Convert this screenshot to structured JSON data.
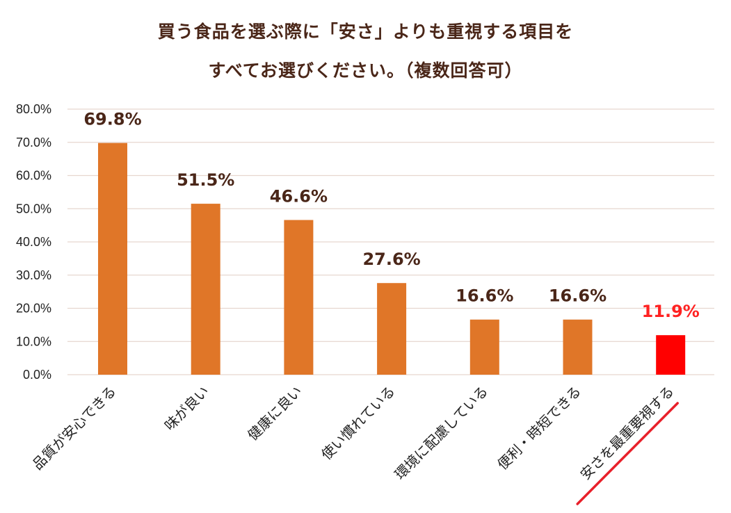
{
  "chart_data": {
    "type": "bar",
    "title_lines": [
      "買う食品を選ぶ際に「安さ」よりも重視する項目を",
      "すべてお選びください。（複数回答可）"
    ],
    "categories": [
      "品質が安心できる",
      "味が良い",
      "健康に良い",
      "使い慣れている",
      "環境に配慮している",
      "便利・時短できる",
      "安さを最重要視する"
    ],
    "values": [
      69.8,
      51.5,
      46.6,
      27.6,
      16.6,
      16.6,
      11.9
    ],
    "data_labels": [
      "69.8%",
      "51.5%",
      "46.6%",
      "27.6%",
      "16.6%",
      "16.6%",
      "11.9%"
    ],
    "y_ticks": [
      "0.0%",
      "10.0%",
      "20.0%",
      "30.0%",
      "40.0%",
      "50.0%",
      "60.0%",
      "70.0%",
      "80.0%"
    ],
    "ylim": [
      0,
      80
    ],
    "grid": true,
    "legend": "none",
    "highlight_index": 6,
    "colors": {
      "bar": "#e07628",
      "highlight_bar": "#ff0000",
      "highlight_label": "#ff2222",
      "label": "#4a2618",
      "grid": "#e6d6cf",
      "underline": "#e8202a"
    }
  }
}
